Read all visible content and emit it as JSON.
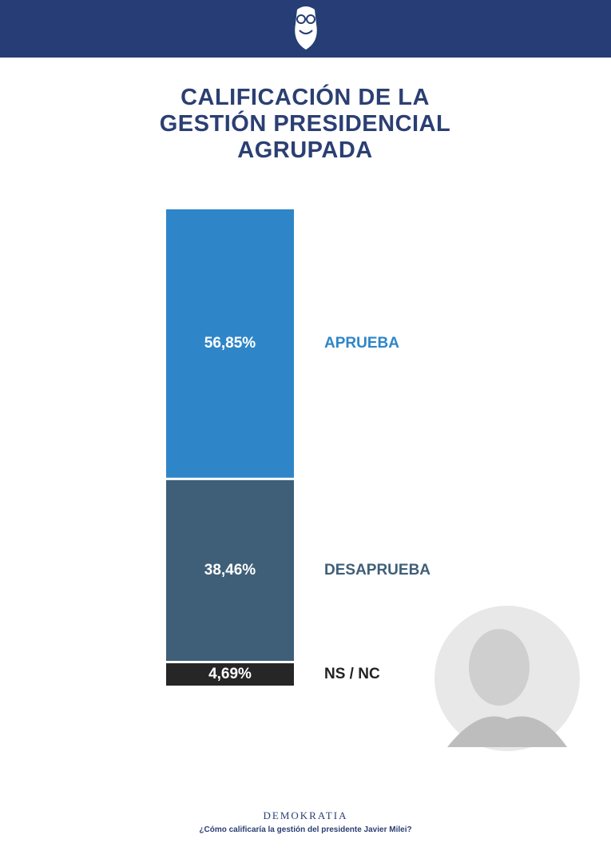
{
  "chart_data": {
    "type": "stacked-bar",
    "title": "CALIFICACIÓN DE LA GESTIÓN PRESIDENCIAL AGRUPADA",
    "series": [
      {
        "name": "APRUEBA",
        "color": "#2e86c8",
        "values": [
          56.85
        ],
        "value_labels": [
          "56,85%"
        ]
      },
      {
        "name": "DESAPRUEBA",
        "color": "#3f5f78",
        "values": [
          38.46
        ],
        "value_labels": [
          "38,46%"
        ]
      },
      {
        "name": "NS / NC",
        "color": "#262626",
        "values": [
          4.69
        ],
        "value_labels": [
          "4,69%"
        ]
      }
    ],
    "source": "DEMOKRATIA",
    "question": "¿Cómo calificaría la gestión del presidente Javier Milei?"
  }
}
